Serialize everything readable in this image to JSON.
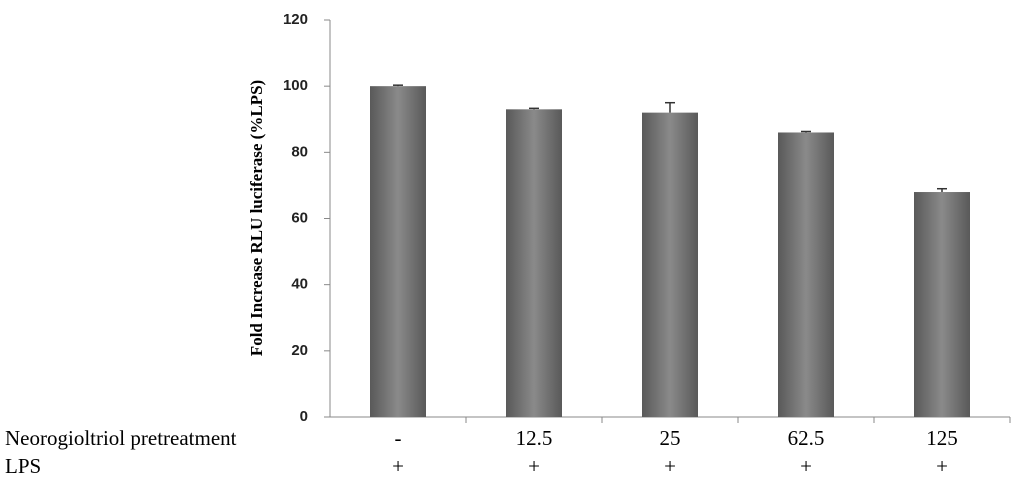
{
  "chart_data": {
    "type": "bar",
    "y_label": "Fold Increase RLU luciferase (%LPS)",
    "row_labels": [
      "Neorogioltriol pretreatment",
      "LPS"
    ],
    "categories": [
      "-",
      "12.5",
      "25",
      "62.5",
      "125"
    ],
    "categories2": [
      "+",
      "+",
      "+",
      "+",
      "+"
    ],
    "values": [
      100,
      93,
      92,
      86,
      68
    ],
    "errors": [
      0.3,
      0.3,
      3,
      0.3,
      1
    ],
    "color": "#595959",
    "ylim": [
      0,
      120
    ],
    "yticks": [
      0,
      20,
      40,
      60,
      80,
      100,
      120
    ],
    "grid": false
  }
}
